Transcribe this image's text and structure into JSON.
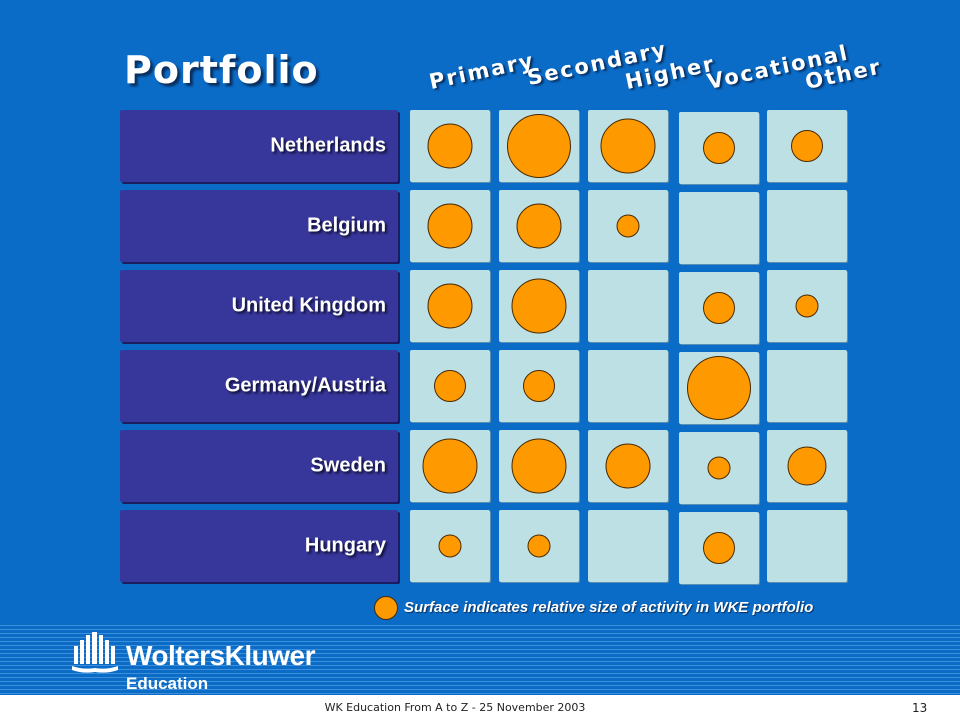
{
  "slide": {
    "title": "Portfolio",
    "columns": [
      "Primary",
      "Secondary",
      "Higher",
      "Vocational",
      "Other"
    ],
    "rows": [
      {
        "label": "Netherlands",
        "cells": [
          2,
          4,
          3,
          1,
          1
        ]
      },
      {
        "label": "Belgium",
        "cells": [
          2,
          2,
          0.5,
          0,
          0
        ]
      },
      {
        "label": "United Kingdom",
        "cells": [
          2,
          3,
          0,
          1,
          0.5
        ]
      },
      {
        "label": "Germany/Austria",
        "cells": [
          1,
          1,
          0,
          4,
          0
        ]
      },
      {
        "label": "Sweden",
        "cells": [
          3,
          3,
          2,
          0.5,
          1.5
        ]
      },
      {
        "label": "Hungary",
        "cells": [
          0.5,
          0.5,
          0,
          1,
          0
        ]
      }
    ],
    "legend": "Surface indicates relative size of activity in WKE portfolio"
  },
  "branding": {
    "company": "WoltersKluwer",
    "division": "Education"
  },
  "footer": {
    "text": "WK Education From A to Z - 25 November 2003",
    "page": "13"
  },
  "colors": {
    "background": "#0a6cc7",
    "row_label": "#37369a",
    "cell": "#bde0e4",
    "bubble": "#ff9900"
  }
}
